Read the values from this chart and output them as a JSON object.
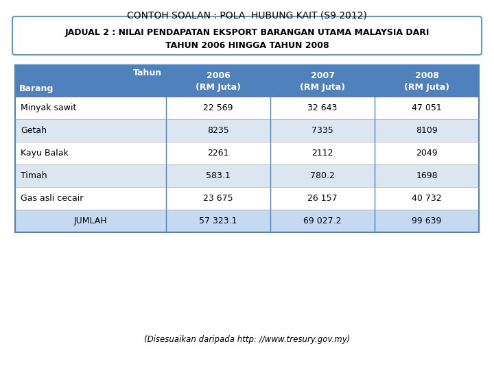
{
  "title": "CONTOH SOALAN : POLA  HUBUNG KAIT (S9 2012)",
  "subtitle_line1": "JADUAL 2 : NILAI PENDAPATAN EKSPORT BARANGAN UTAMA MALAYSIA DARI",
  "subtitle_line2": "TAHUN 2006 HINGGA TAHUN 2008",
  "footer": "(Disesuaikan daripada http: //www.tresury.gov.my)",
  "header_bg": "#4f81bd",
  "header_text_color": "#ffffff",
  "row_bg_odd": "#ffffff",
  "row_bg_even": "#dce6f1",
  "row_last_bg": "#c5d9f1",
  "border_color": "#4f81bd",
  "col_header_top": [
    "Tahun",
    "2006",
    "2007",
    "2008"
  ],
  "col_header_bot": [
    "",
    "(RM Juta)",
    "(RM Juta)",
    "(RM Juta)"
  ],
  "row_label": "Barang",
  "rows": [
    [
      "Minyak sawit",
      "22 569",
      "32 643",
      "47 051"
    ],
    [
      "Getah",
      "8235",
      "7335",
      "8109"
    ],
    [
      "Kayu Balak",
      "2261",
      "2112",
      "2049"
    ],
    [
      "Timah",
      "583.1",
      "780.2",
      "1698"
    ],
    [
      "Gas asli cecair",
      "23 675",
      "26 157",
      "40 732"
    ],
    [
      "JUMLAH",
      "57 323.1",
      "69 027.2",
      "99 639"
    ]
  ],
  "title_fontsize": 10,
  "subtitle_fontsize": 9,
  "table_fontsize": 9,
  "footer_fontsize": 8.5
}
